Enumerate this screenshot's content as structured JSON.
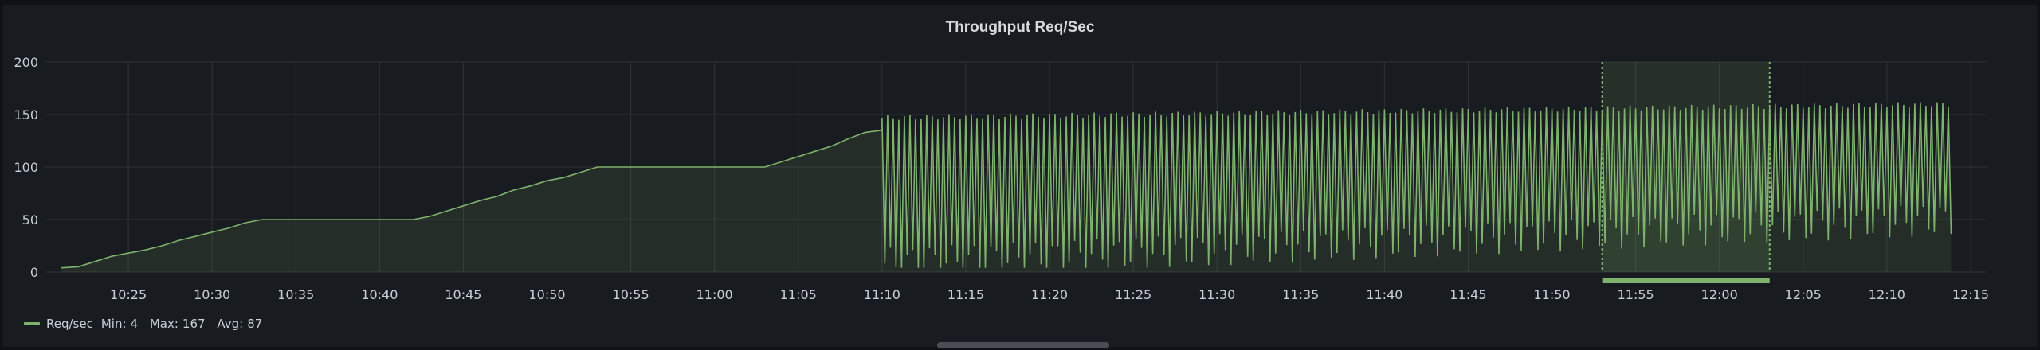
{
  "panel": {
    "title": "Throughput Req/Sec"
  },
  "colors": {
    "series": "#7eb26d",
    "grid": "#2f3238",
    "background": "#181b1f",
    "text": "#c7d0d9"
  },
  "chart_data": {
    "type": "line",
    "title": "Throughput Req/Sec",
    "xlabel": "",
    "ylabel": "",
    "ylim": [
      0,
      200
    ],
    "xlim": [
      "10:20",
      "12:16"
    ],
    "yticks": [
      "0",
      "50",
      "100",
      "150",
      "200"
    ],
    "xticks": [
      "10:25",
      "10:30",
      "10:35",
      "10:40",
      "10:45",
      "10:50",
      "10:55",
      "11:00",
      "11:05",
      "11:10",
      "11:15",
      "11:20",
      "11:25",
      "11:30",
      "11:35",
      "11:40",
      "11:45",
      "11:50",
      "11:55",
      "12:00",
      "12:05",
      "12:10",
      "12:15"
    ],
    "grid": true,
    "fill": "area",
    "legend_position": "bottom-left",
    "series": [
      {
        "name": "Req/sec",
        "stats": {
          "min_label": "Min:",
          "min": "4",
          "max_label": "Max:",
          "max": "167",
          "avg_label": "Avg:",
          "avg": "87"
        },
        "ramp": [
          [
            "10:21",
            4
          ],
          [
            "10:22",
            5
          ],
          [
            "10:23",
            10
          ],
          [
            "10:24",
            15
          ],
          [
            "10:25",
            18
          ],
          [
            "10:26",
            21
          ],
          [
            "10:27",
            25
          ],
          [
            "10:28",
            30
          ],
          [
            "10:29",
            34
          ],
          [
            "10:30",
            38
          ],
          [
            "10:31",
            42
          ],
          [
            "10:32",
            47
          ],
          [
            "10:33",
            50
          ],
          [
            "10:42",
            50
          ],
          [
            "10:43",
            53
          ],
          [
            "10:44",
            58
          ],
          [
            "10:45",
            63
          ],
          [
            "10:46",
            68
          ],
          [
            "10:47",
            72
          ],
          [
            "10:48",
            78
          ],
          [
            "10:49",
            82
          ],
          [
            "10:50",
            87
          ],
          [
            "10:51",
            90
          ],
          [
            "10:52",
            95
          ],
          [
            "10:53",
            100
          ],
          [
            "11:03",
            100
          ],
          [
            "11:04",
            105
          ],
          [
            "11:05",
            110
          ],
          [
            "11:06",
            115
          ],
          [
            "11:07",
            120
          ],
          [
            "11:08",
            127
          ],
          [
            "11:09",
            133
          ],
          [
            "11:10",
            135
          ]
        ],
        "oscillation": {
          "start": "11:10",
          "end": "12:14",
          "period_seconds": 20,
          "peak_start": 147,
          "peak_end": 160,
          "trough_start": 8,
          "trough_end": 50
        }
      }
    ],
    "annotation_region": {
      "start": "11:53",
      "end": "12:03"
    }
  }
}
